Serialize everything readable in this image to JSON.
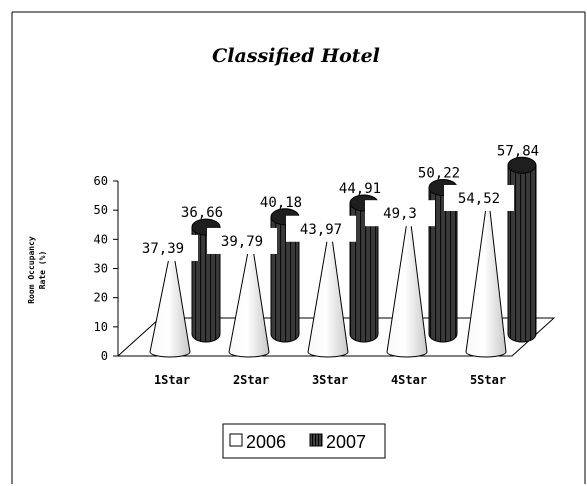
{
  "chart_data": {
    "type": "bar",
    "title": "Classified Hotel",
    "ylabel_line1": "Room Occupancy",
    "ylabel_line2": "Rate (%)",
    "categories": [
      "1Star",
      "2Star",
      "3Star",
      "4Star",
      "5Star"
    ],
    "series": [
      {
        "name": "2006",
        "values": [
          37.39,
          39.79,
          43.97,
          49.3,
          54.52
        ],
        "labels": [
          "37,39",
          "39,79",
          "43,97",
          "49,3",
          "54,52"
        ],
        "shape": "cone",
        "color": "#e8e8e8"
      },
      {
        "name": "2007",
        "values": [
          36.66,
          40.18,
          44.91,
          50.22,
          57.84
        ],
        "labels": [
          "36,66",
          "40,18",
          "44,91",
          "50,22",
          "57,84"
        ],
        "shape": "cylinder",
        "color": "#2a2a2a"
      }
    ],
    "ylim": [
      0,
      60
    ],
    "yticks": [
      0,
      10,
      20,
      30,
      40,
      50,
      60
    ],
    "grid": false,
    "legend_position": "bottom"
  }
}
